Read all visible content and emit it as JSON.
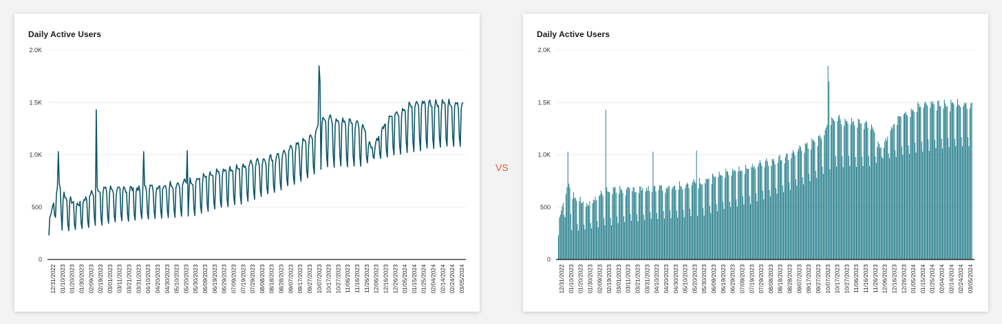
{
  "separator": "VS",
  "colors": {
    "line": "#0d5566",
    "bar": "#1e7a88",
    "grid": "#ececec",
    "axis": "#333333",
    "vs": "#e8553e"
  },
  "chart_data": [
    {
      "type": "line",
      "title": "Daily Active Users",
      "ylim": [
        0,
        2000
      ],
      "yticks": [
        0,
        500,
        1000,
        1500,
        2000
      ],
      "yticklabels": [
        "0",
        "500",
        "1.0K",
        "1.5K",
        "2.0K"
      ],
      "grid": true,
      "x_start": "12/31/2022",
      "x_end": "03/12/2024",
      "xticklabels": [
        "12/31/2022",
        "01/10/2023",
        "01/20/2023",
        "01/30/2023",
        "02/09/2023",
        "02/19/2023",
        "03/01/2023",
        "03/11/2023",
        "03/21/2023",
        "03/31/2023",
        "04/10/2023",
        "04/20/2023",
        "04/30/2023",
        "05/10/2023",
        "05/20/2023",
        "05/30/2023",
        "06/09/2023",
        "06/19/2023",
        "06/29/2023",
        "07/09/2023",
        "07/19/2023",
        "07/29/2023",
        "08/08/2023",
        "08/18/2023",
        "08/28/2023",
        "09/07/2023",
        "09/17/2023",
        "09/27/2023",
        "10/07/2023",
        "10/17/2023",
        "10/27/2023",
        "11/06/2023",
        "11/16/2023",
        "11/26/2023",
        "12/06/2023",
        "12/16/2023",
        "12/26/2023",
        "01/05/2024",
        "01/15/2024",
        "01/25/2024",
        "02/04/2024",
        "02/14/2024",
        "02/24/2024",
        "03/05/2024"
      ],
      "baseline": [
        [
          0,
          230
        ],
        [
          2,
          380
        ],
        [
          9,
          400
        ],
        [
          10,
          700
        ],
        [
          14,
          280
        ],
        [
          30,
          290
        ],
        [
          50,
          330
        ],
        [
          100,
          390
        ],
        [
          150,
          420
        ],
        [
          200,
          530
        ],
        [
          240,
          650
        ],
        [
          276,
          790
        ],
        [
          290,
          880
        ],
        [
          320,
          890
        ],
        [
          330,
          900
        ],
        [
          340,
          950
        ],
        [
          365,
          1000
        ],
        [
          405,
          1070
        ],
        [
          437,
          1080
        ]
      ],
      "peak": [
        [
          0,
          380
        ],
        [
          10,
          730
        ],
        [
          18,
          600
        ],
        [
          30,
          530
        ],
        [
          50,
          680
        ],
        [
          100,
          690
        ],
        [
          150,
          760
        ],
        [
          200,
          900
        ],
        [
          240,
          1000
        ],
        [
          276,
          1170
        ],
        [
          290,
          1380
        ],
        [
          310,
          1350
        ],
        [
          330,
          1330
        ],
        [
          340,
          1050
        ],
        [
          360,
          1400
        ],
        [
          390,
          1520
        ],
        [
          437,
          1500
        ]
      ],
      "spikes": [
        {
          "x": 10,
          "y": 1030
        },
        {
          "x": 50,
          "y": 1430
        },
        {
          "x": 100,
          "y": 1030
        },
        {
          "x": 146,
          "y": 1040
        },
        {
          "x": 285,
          "y": 1850
        },
        {
          "x": 286,
          "y": 1700
        }
      ],
      "series": [
        {
          "values": []
        }
      ]
    },
    {
      "type": "bar",
      "title": "Daily Active Users",
      "ylim": [
        0,
        2000
      ],
      "yticklabels": [
        "0",
        "500",
        "1.0K",
        "1.5K",
        "2.0K"
      ],
      "grid": true,
      "same_data_as": 0
    }
  ]
}
